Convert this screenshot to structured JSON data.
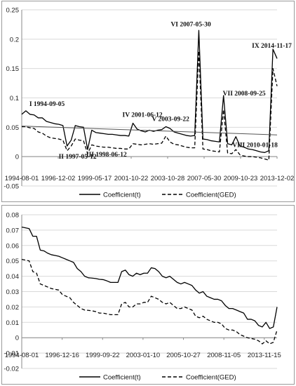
{
  "chart_data": [
    {
      "type": "line",
      "title": "",
      "xlabel": "",
      "ylabel": "",
      "ylim": [
        -0.05,
        0.25
      ],
      "yticks": [
        "0.25",
        "0.2",
        "0.15",
        "0.1",
        "0.05",
        "0",
        "-0.05"
      ],
      "x_tick_labels": [
        "1994-08-01",
        "1996-12-02",
        "1999-05-17",
        "2001-10-22",
        "2003-10-28",
        "2007-05-30",
        "2009-10-23",
        "2013-12-02"
      ],
      "grid": true,
      "legend_position": "bottom",
      "series": [
        {
          "name": "Coefficient(t)",
          "style": "solid",
          "color": "#000000",
          "values": [
            0.072,
            0.078,
            0.072,
            0.071,
            0.066,
            0.066,
            0.06,
            0.058,
            0.056,
            0.055,
            0.053,
            0.018,
            0.028,
            0.053,
            0.051,
            0.05,
            0.012,
            0.045,
            0.041,
            0.04,
            0.039,
            0.038,
            0.038,
            0.037,
            0.036,
            0.036,
            0.035,
            0.057,
            0.047,
            0.044,
            0.042,
            0.045,
            0.043,
            0.045,
            0.046,
            0.051,
            0.048,
            0.042,
            0.04,
            0.038,
            0.036,
            0.035,
            0.036,
            0.215,
            0.03,
            0.029,
            0.027,
            0.026,
            0.025,
            0.104,
            0.022,
            0.02,
            0.034,
            0.018,
            0.016,
            0.013,
            0.012,
            0.01,
            0.008,
            0.007,
            0.01,
            0.183,
            0.167
          ]
        },
        {
          "name": "Coefficient(GED)",
          "style": "dashed",
          "color": "#000000",
          "values": [
            0.051,
            0.051,
            0.049,
            0.048,
            0.042,
            0.04,
            0.035,
            0.032,
            0.031,
            0.03,
            0.028,
            0.01,
            0.018,
            0.03,
            0.028,
            0.027,
            0.005,
            0.02,
            0.018,
            0.017,
            0.016,
            0.016,
            0.015,
            0.014,
            0.014,
            0.013,
            0.013,
            0.022,
            0.021,
            0.02,
            0.021,
            0.022,
            0.021,
            0.022,
            0.023,
            0.035,
            0.025,
            0.021,
            0.02,
            0.018,
            0.016,
            0.015,
            0.015,
            0.18,
            0.013,
            0.012,
            0.01,
            0.009,
            0.008,
            0.08,
            0.006,
            0.005,
            0.012,
            0.003,
            0.001,
            0.0,
            0.0,
            -0.001,
            -0.002,
            -0.004,
            -0.006,
            0.15,
            0.12
          ]
        },
        {
          "name": "",
          "style": "trend",
          "color": "#555555",
          "values": [
            0.052,
            0.037
          ]
        }
      ],
      "annotations": [
        {
          "text": "I 1994-09-05",
          "x_index": 1,
          "y": 0.078
        },
        {
          "text": "II 1997-05-12",
          "x_index": 11,
          "y": 0.018
        },
        {
          "text": "III 1998-06-12",
          "x_index": 16,
          "y": 0.012
        },
        {
          "text": "IV 2001-06-12",
          "x_index": 27,
          "y": 0.057
        },
        {
          "text": "V 2003-09-22",
          "x_index": 35,
          "y": 0.051
        },
        {
          "text": "VI 2007-05-30",
          "x_index": 43,
          "y": 0.215
        },
        {
          "text": "VII 2008-09-25",
          "x_index": 49,
          "y": 0.104
        },
        {
          "text": "VIII 2010-01-18",
          "x_index": 52,
          "y": 0.034
        },
        {
          "text": "IX 2014-11-17",
          "x_index": 61,
          "y": 0.183
        }
      ]
    },
    {
      "type": "line",
      "title": "",
      "xlabel": "",
      "ylabel": "",
      "ylim": [
        -0.02,
        0.08
      ],
      "yticks": [
        "0.08",
        "0.07",
        "0.06",
        "0.05",
        "0.04",
        "0.03",
        "0.02",
        "0.01",
        "0",
        "-0.01",
        "-0.02"
      ],
      "x_tick_labels": [
        "1994-08-01",
        "1996-12-16",
        "1999-09-22",
        "2003-01-10",
        "2005-10-27",
        "2008-11-05",
        "2013-11-15"
      ],
      "grid": true,
      "legend_position": "bottom",
      "series": [
        {
          "name": "Coefficient(t)",
          "style": "solid",
          "color": "#000000",
          "values": [
            0.072,
            0.0715,
            0.071,
            0.066,
            0.066,
            0.057,
            0.0565,
            0.055,
            0.054,
            0.0535,
            0.053,
            0.052,
            0.051,
            0.05,
            0.049,
            0.045,
            0.043,
            0.04,
            0.039,
            0.0388,
            0.0385,
            0.038,
            0.0378,
            0.037,
            0.036,
            0.036,
            0.036,
            0.043,
            0.044,
            0.041,
            0.04,
            0.042,
            0.041,
            0.042,
            0.042,
            0.0455,
            0.045,
            0.043,
            0.04,
            0.039,
            0.04,
            0.038,
            0.036,
            0.035,
            0.036,
            0.035,
            0.034,
            0.031,
            0.029,
            0.03,
            0.027,
            0.026,
            0.025,
            0.025,
            0.024,
            0.021,
            0.019,
            0.019,
            0.018,
            0.017,
            0.016,
            0.012,
            0.012,
            0.011,
            0.008,
            0.007,
            0.01,
            0.006,
            0.007,
            0.02
          ]
        },
        {
          "name": "Coefficient(GED)",
          "style": "dashed",
          "color": "#000000",
          "values": [
            0.051,
            0.0505,
            0.05,
            0.043,
            0.042,
            0.035,
            0.034,
            0.033,
            0.032,
            0.0315,
            0.031,
            0.028,
            0.027,
            0.026,
            0.023,
            0.021,
            0.019,
            0.018,
            0.0178,
            0.0175,
            0.017,
            0.016,
            0.016,
            0.0155,
            0.015,
            0.015,
            0.015,
            0.022,
            0.023,
            0.02,
            0.02,
            0.022,
            0.022,
            0.023,
            0.023,
            0.027,
            0.026,
            0.025,
            0.023,
            0.022,
            0.023,
            0.021,
            0.019,
            0.019,
            0.02,
            0.019,
            0.018,
            0.014,
            0.013,
            0.014,
            0.012,
            0.011,
            0.01,
            0.01,
            0.009,
            0.006,
            0.005,
            0.005,
            0.004,
            0.002,
            0.001,
            0.0,
            -0.0005,
            -0.001,
            -0.002,
            -0.004,
            -0.002,
            -0.004,
            -0.003,
            0.005
          ]
        }
      ]
    }
  ]
}
